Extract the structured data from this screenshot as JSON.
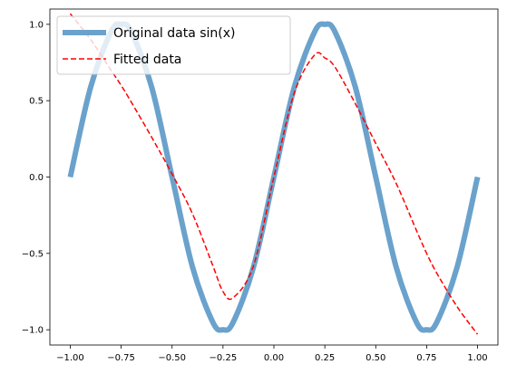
{
  "chart_data": {
    "type": "line",
    "title": "",
    "xlabel": "",
    "ylabel": "",
    "xlim": [
      -1.1,
      1.1
    ],
    "ylim": [
      -1.1,
      1.1
    ],
    "xticks": [
      -1.0,
      -0.75,
      -0.5,
      -0.25,
      0.0,
      0.25,
      0.5,
      0.75,
      1.0
    ],
    "xtick_labels": [
      "−1.00",
      "−0.75",
      "−0.50",
      "−0.25",
      "0.00",
      "0.25",
      "0.50",
      "0.75",
      "1.00"
    ],
    "yticks": [
      -1.0,
      -0.5,
      0.0,
      0.5,
      1.0
    ],
    "ytick_labels": [
      "−1.0",
      "−0.5",
      "0.0",
      "0.5",
      "1.0"
    ],
    "grid": false,
    "legend_position": "upper-left",
    "x": [
      -1.0,
      -0.9,
      -0.8,
      -0.75,
      -0.7,
      -0.6,
      -0.5,
      -0.4,
      -0.3,
      -0.25,
      -0.2,
      -0.1,
      0.0,
      0.1,
      0.2,
      0.25,
      0.3,
      0.4,
      0.5,
      0.6,
      0.7,
      0.75,
      0.8,
      0.9,
      1.0
    ],
    "series": [
      {
        "name": "Original data sin(x)",
        "color": "#6aa2cc",
        "style": "solid-thick",
        "values": [
          0.0,
          0.588,
          0.951,
          1.0,
          0.951,
          0.588,
          0.0,
          -0.588,
          -0.951,
          -1.0,
          -0.951,
          -0.588,
          0.0,
          0.588,
          0.951,
          1.0,
          0.951,
          0.588,
          0.0,
          -0.588,
          -0.951,
          -1.0,
          -0.951,
          -0.588,
          0.0
        ]
      },
      {
        "name": "Fitted data",
        "color": "#ff0000",
        "style": "dashed",
        "values": [
          1.07,
          0.9,
          0.7,
          0.6,
          0.49,
          0.26,
          0.02,
          -0.24,
          -0.58,
          -0.75,
          -0.79,
          -0.58,
          0.0,
          0.55,
          0.8,
          0.78,
          0.72,
          0.48,
          0.22,
          -0.04,
          -0.35,
          -0.5,
          -0.63,
          -0.85,
          -1.03
        ]
      }
    ]
  }
}
